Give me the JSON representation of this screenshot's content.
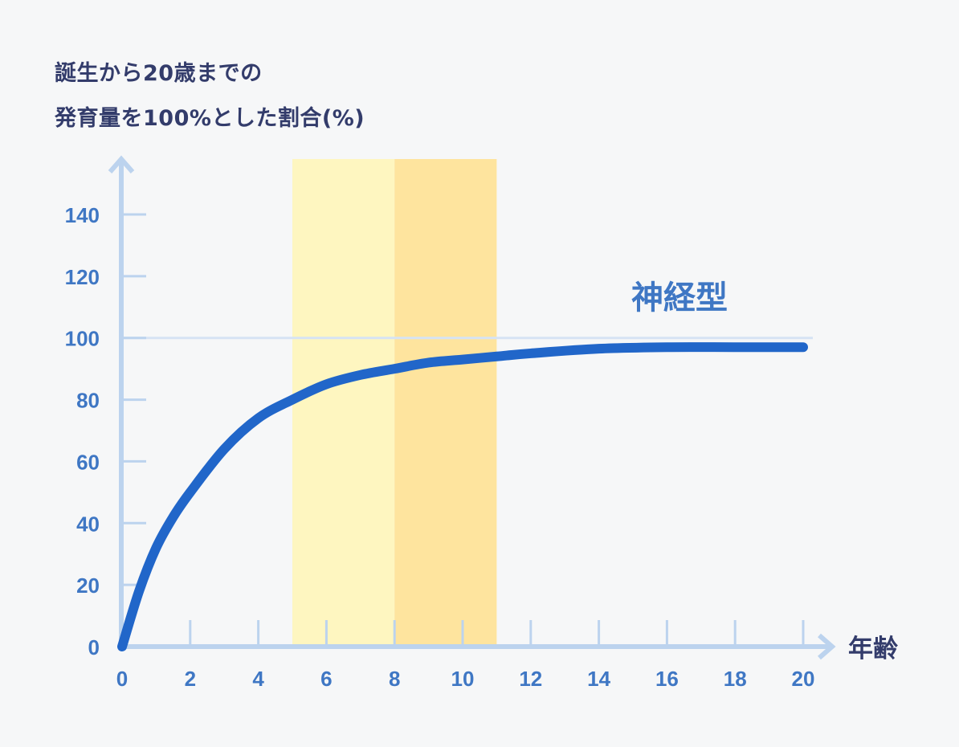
{
  "chart_data": {
    "type": "line",
    "title": "誕生から20歳までの発育量を100%とした割合(%)",
    "title_lines": [
      "誕生から20歳までの",
      "発育量を100%とした割合(%)"
    ],
    "xlabel": "年齢",
    "ylabel": "誕生から20歳までの発育量を100%とした割合(%)",
    "xlim": [
      0,
      20
    ],
    "ylim": [
      0,
      150
    ],
    "x_ticks": [
      0,
      2,
      4,
      6,
      8,
      10,
      12,
      14,
      16,
      18,
      20
    ],
    "x_tick_labels": [
      "0",
      "2",
      "4",
      "6",
      "8",
      "10",
      "12",
      "14",
      "16",
      "18",
      "20"
    ],
    "y_ticks": [
      0,
      20,
      40,
      60,
      80,
      100,
      120,
      140
    ],
    "y_tick_labels": [
      "0",
      "20",
      "40",
      "60",
      "80",
      "100",
      "120",
      "140"
    ],
    "reference_line": {
      "y": 100
    },
    "grid": false,
    "legend": "none",
    "highlight_bands": [
      {
        "from": 5,
        "to": 8,
        "color": "#fef6c0"
      },
      {
        "from": 8,
        "to": 11,
        "color": "#fee49e"
      }
    ],
    "series": [
      {
        "name": "神経型",
        "color": "#2166c9",
        "x": [
          0,
          0.5,
          1,
          1.5,
          2,
          3,
          4,
          5,
          6,
          7,
          8,
          9,
          10,
          11,
          12,
          14,
          16,
          18,
          20
        ],
        "values": [
          0,
          18,
          32,
          42,
          50,
          64,
          74,
          80,
          85,
          88,
          90,
          92,
          93,
          94,
          95,
          96.5,
          97,
          97,
          97
        ]
      }
    ]
  },
  "labels": {
    "title_line1": "誕生から20歳までの",
    "title_line2": "発育量を100%とした割合(%)",
    "series_name": "神経型",
    "x_axis_title": "年齢"
  },
  "colors": {
    "background": "#f6f7f8",
    "axis": "#bcd3ee",
    "tick_label": "#3f77c4",
    "title": "#333c6b",
    "curve": "#2166c9",
    "band_light": "#fef6c0",
    "band_dark": "#fee49e"
  }
}
